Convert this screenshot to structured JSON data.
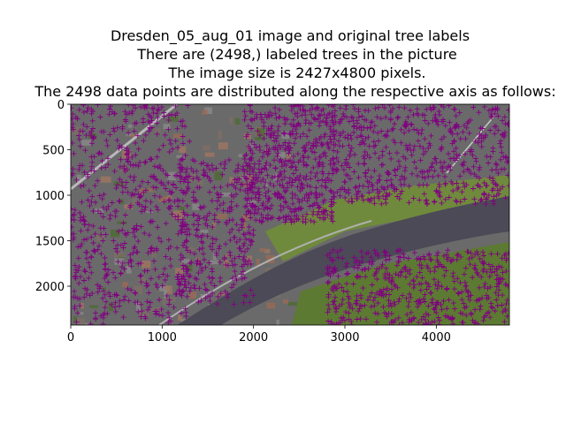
{
  "figure": {
    "title_lines": [
      "Dresden_05_aug_01 image and original tree labels",
      "There are (2498,) labeled trees in the picture",
      "The image size is 2427x4800 pixels.",
      "The 2498 data points are distributed along the respective axis as follows:"
    ]
  },
  "chart_data": {
    "type": "scatter",
    "background": "aerial image",
    "marker": "+",
    "marker_color": "#800080",
    "xlim": [
      0,
      4800
    ],
    "ylim": [
      2427,
      0
    ],
    "xticks": [
      0,
      1000,
      2000,
      3000,
      4000
    ],
    "yticks": [
      0,
      500,
      1000,
      1500,
      2000
    ],
    "total_points": 2498,
    "clusters": [
      {
        "x_range": [
          0,
          1300
        ],
        "y_range": [
          0,
          2427
        ],
        "share": 0.24
      },
      {
        "x_range": [
          1900,
          2900
        ],
        "y_range": [
          0,
          1300
        ],
        "share": 0.22
      },
      {
        "x_range": [
          2900,
          4800
        ],
        "y_range": [
          0,
          1100
        ],
        "share": 0.22
      },
      {
        "x_range": [
          1200,
          2000
        ],
        "y_range": [
          600,
          2200
        ],
        "share": 0.12
      },
      {
        "x_range": [
          2800,
          4800
        ],
        "y_range": [
          1600,
          2427
        ],
        "share": 0.2
      }
    ],
    "image_palette": {
      "urban": "#6a6a6a",
      "roof": "#9a6a55",
      "vegetation": "#4e6a32",
      "grass": "#6f8a3c",
      "river": "#4c4a56",
      "road": "#b9b9b9"
    }
  }
}
